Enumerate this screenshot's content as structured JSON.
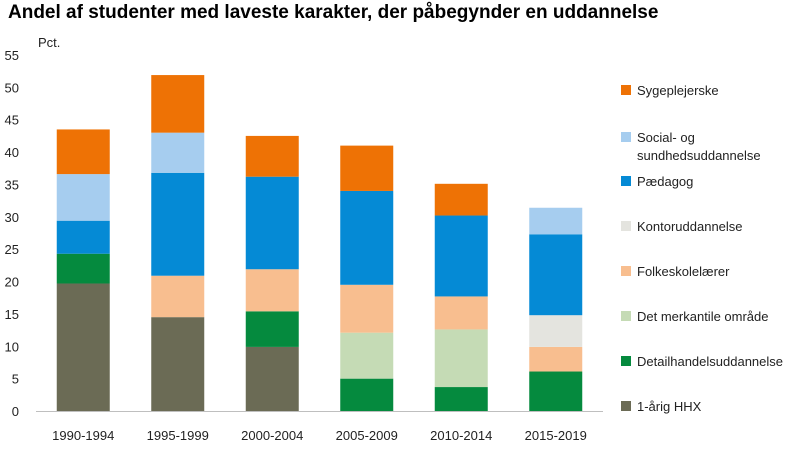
{
  "title": "Andel af studenter med laveste karakter, der påbegynder en uddannelse",
  "chart_data": {
    "type": "bar",
    "stacked": true,
    "title": "Andel af studenter med laveste karakter, der påbegynder en uddannelse",
    "ylabel": "Pct.",
    "xlabel": "",
    "ylim": [
      0,
      55
    ],
    "yticks": [
      0,
      5,
      10,
      15,
      20,
      25,
      30,
      35,
      40,
      45,
      50,
      55
    ],
    "grid": false,
    "legend_position": "right",
    "categories": [
      "1990-1994",
      "1995-1999",
      "2000-2004",
      "2005-2009",
      "2010-2014",
      "2015-2019"
    ],
    "series": [
      {
        "name": "1-årig HHX",
        "color": "#6b6b55",
        "values": [
          19.7,
          14.5,
          9.9,
          0,
          0,
          0
        ]
      },
      {
        "name": "Detailhandelsuddannelse",
        "color": "#058a3e",
        "values": [
          4.6,
          0,
          5.5,
          5.0,
          3.7,
          6.1
        ]
      },
      {
        "name": "Det merkantile område",
        "color": "#c5dbb5",
        "values": [
          0,
          0,
          0,
          7.1,
          8.9,
          0
        ]
      },
      {
        "name": "Folkeskolelærer",
        "color": "#f8be8f",
        "values": [
          0,
          6.4,
          6.5,
          7.4,
          5.1,
          3.8
        ]
      },
      {
        "name": "Kontoruddannelse",
        "color": "#e4e4df",
        "values": [
          0,
          0,
          0,
          0,
          0,
          4.9
        ]
      },
      {
        "name": "Pædagog",
        "color": "#058ad5",
        "values": [
          5.1,
          15.9,
          14.3,
          14.5,
          12.5,
          12.5
        ]
      },
      {
        "name": "Social- og sundhedsuddannelse",
        "color": "#a6cdef",
        "values": [
          7.2,
          6.2,
          0,
          0,
          0,
          4.1
        ]
      },
      {
        "name": "Sygeplejerske",
        "color": "#ee7205",
        "values": [
          6.9,
          8.9,
          6.3,
          7.0,
          4.9,
          0
        ]
      }
    ],
    "legend": [
      {
        "label": "Sygeplejerske",
        "lines": [
          "Sygeplejerske"
        ],
        "color": "#ee7205"
      },
      {
        "label": "Social- og sundhedsuddannelse",
        "lines": [
          "Social- og",
          "sundhedsuddannelse"
        ],
        "color": "#a6cdef"
      },
      {
        "label": "Pædagog",
        "lines": [
          "Pædagog"
        ],
        "color": "#058ad5"
      },
      {
        "label": "Kontoruddannelse",
        "lines": [
          "Kontoruddannelse"
        ],
        "color": "#e4e4df"
      },
      {
        "label": "Folkeskolelærer",
        "lines": [
          "Folkeskolelærer"
        ],
        "color": "#f8be8f"
      },
      {
        "label": "Det merkantile område",
        "lines": [
          "Det merkantile område"
        ],
        "color": "#c5dbb5"
      },
      {
        "label": "Detailhandelsuddannelse",
        "lines": [
          "Detailhandelsuddannelse"
        ],
        "color": "#058a3e"
      },
      {
        "label": "1-årig HHX",
        "lines": [
          "1-årig HHX"
        ],
        "color": "#6b6b55"
      }
    ]
  }
}
